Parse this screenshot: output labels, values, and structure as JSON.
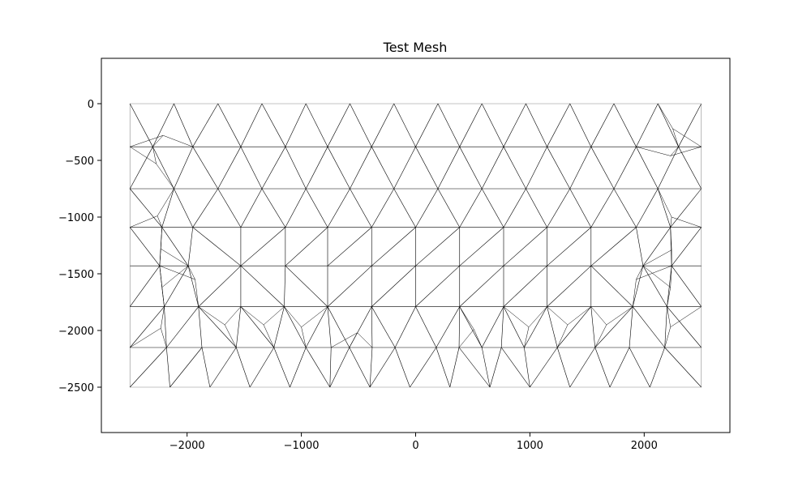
{
  "chart_data": {
    "type": "mesh",
    "title": "Test Mesh",
    "xlabel": "",
    "ylabel": "",
    "xlim": [
      -2750,
      2750
    ],
    "ylim": [
      -2900,
      400
    ],
    "x_ticks": [
      -2000,
      -1000,
      0,
      1000,
      2000
    ],
    "x_tick_labels": [
      "−2000",
      "−1000",
      "0",
      "1000",
      "2000"
    ],
    "y_ticks": [
      0,
      -500,
      -1000,
      -1500,
      -2000,
      -2500
    ],
    "y_tick_labels": [
      "0",
      "−500",
      "−1000",
      "−1500",
      "−2000",
      "−2500"
    ],
    "grid": false,
    "mesh_color": "#000000",
    "boundary_color": "#888888",
    "domain": {
      "x": [
        -2500,
        2500
      ],
      "y": [
        -2500,
        0
      ]
    },
    "rows": [
      {
        "y": 0,
        "x": [
          -2500,
          -2115,
          -1730,
          -1345,
          -960,
          -575,
          -190,
          195,
          580,
          965,
          1350,
          1735,
          2120,
          2500
        ]
      },
      {
        "y": -380,
        "x": [
          -2500,
          -2300,
          -1950,
          -1530,
          -1140,
          -770,
          -385,
          0,
          385,
          770,
          1150,
          1535,
          1930,
          2300,
          2500
        ]
      },
      {
        "y": -750,
        "x": [
          -2500,
          -2115,
          -1730,
          -1345,
          -960,
          -575,
          -190,
          195,
          580,
          965,
          1350,
          1735,
          2120,
          2500
        ]
      },
      {
        "y": -1090,
        "x": [
          -2500,
          -2220,
          -1950,
          -1530,
          -1140,
          -770,
          -385,
          0,
          385,
          770,
          1150,
          1535,
          1930,
          2230,
          2500
        ]
      },
      {
        "y": -1430,
        "x": [
          -2500,
          -2240,
          -1990,
          -1530,
          -1140,
          -770,
          -385,
          0,
          385,
          770,
          1150,
          1535,
          1990,
          2240,
          2500
        ]
      },
      {
        "y": -1790,
        "x": [
          -2500,
          -2200,
          -1900,
          -1530,
          -1150,
          -770,
          -385,
          0,
          385,
          770,
          1150,
          1535,
          1900,
          2200,
          2500
        ]
      },
      {
        "y": -2150,
        "x": [
          -2500,
          -2180,
          -1870,
          -1570,
          -1240,
          -960,
          -740,
          -580,
          -380,
          -180,
          180,
          380,
          580,
          750,
          950,
          1240,
          1570,
          1870,
          2180,
          2500
        ]
      },
      {
        "y": -2500,
        "x": [
          -2500,
          -2150,
          -1800,
          -1450,
          -1100,
          -750,
          -400,
          -50,
          300,
          650,
          1000,
          1350,
          1700,
          2050,
          2500
        ]
      }
    ],
    "extra_points": [
      {
        "x": -2210,
        "y": -280
      },
      {
        "x": -2270,
        "y": -530
      },
      {
        "x": 2250,
        "y": -220
      },
      {
        "x": 2230,
        "y": -460
      },
      {
        "x": -2260,
        "y": -990
      },
      {
        "x": -2230,
        "y": -1280
      },
      {
        "x": 2240,
        "y": -1000
      },
      {
        "x": 2240,
        "y": -1290
      },
      {
        "x": -2220,
        "y": -1620
      },
      {
        "x": -2230,
        "y": -1980
      },
      {
        "x": 2230,
        "y": -1620
      },
      {
        "x": 2230,
        "y": -1970
      },
      {
        "x": -1670,
        "y": -1950
      },
      {
        "x": -1330,
        "y": -1950
      },
      {
        "x": -1000,
        "y": -1970
      },
      {
        "x": -510,
        "y": -2020
      },
      {
        "x": 510,
        "y": -1990
      },
      {
        "x": 990,
        "y": -1970
      },
      {
        "x": 1330,
        "y": -1950
      },
      {
        "x": 1670,
        "y": -1950
      },
      {
        "x": -1930,
        "y": -1550
      },
      {
        "x": 1930,
        "y": -1550
      }
    ]
  }
}
